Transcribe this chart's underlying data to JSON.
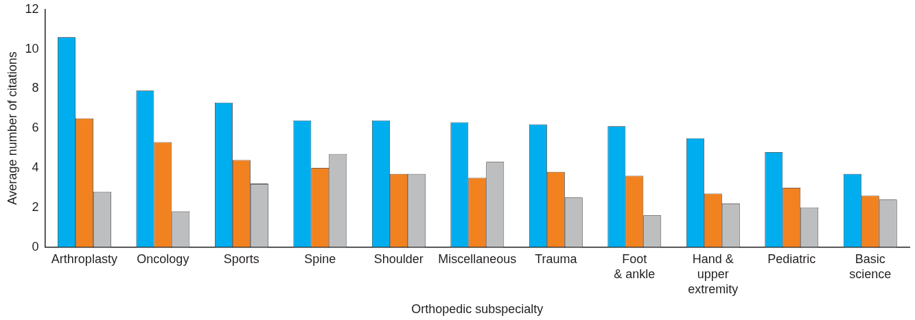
{
  "chart_data": {
    "type": "bar",
    "xlabel": "Orthopedic subspecialty",
    "ylabel": "Average number of citations",
    "categories": [
      "Arthroplasty",
      "Oncology",
      "Sports",
      "Spine",
      "Shoulder",
      "Miscellaneous",
      "Trauma",
      "Foot\n& ankle",
      "Hand &\nupper\nextremity",
      "Pediatric",
      "Basic\nscience"
    ],
    "series": [
      {
        "color": "#00aeef",
        "values": [
          10.6,
          7.9,
          7.3,
          6.4,
          6.4,
          6.3,
          6.2,
          6.1,
          5.5,
          4.8,
          3.7
        ]
      },
      {
        "color": "#f28220",
        "values": [
          6.5,
          5.3,
          4.4,
          4.0,
          3.7,
          3.5,
          3.8,
          3.6,
          2.7,
          3.0,
          2.6
        ]
      },
      {
        "color": "#bcbec0",
        "values": [
          2.8,
          1.8,
          3.2,
          4.7,
          3.7,
          4.3,
          2.5,
          1.6,
          2.2,
          2.0,
          2.4
        ]
      }
    ],
    "ylim": [
      0,
      12
    ],
    "yticks": [
      0,
      2,
      4,
      6,
      8,
      10,
      12
    ],
    "grid": false,
    "legend": false
  }
}
